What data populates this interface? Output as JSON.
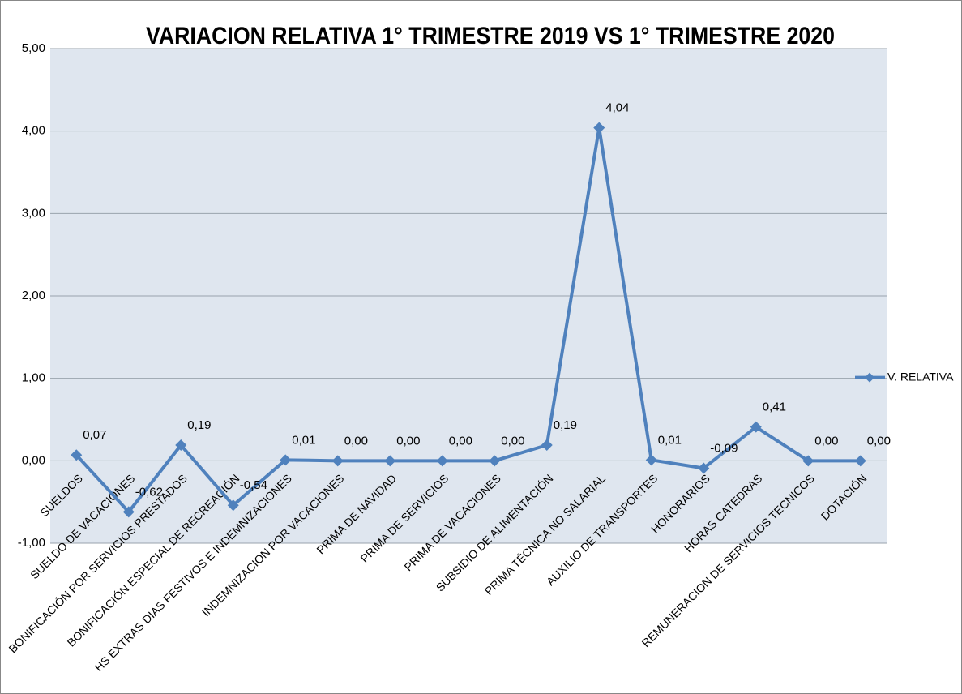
{
  "chart_data": {
    "type": "line",
    "title": "VARIACION  RELATIVA 1° TRIMESTRE 2019 VS 1° TRIMESTRE 2020",
    "categories": [
      "SUELDOS",
      "SUELDO DE VACACIONES",
      "BONIFICACIÓN POR SERVICIOS PRESTADOS",
      "BONIFICACIÓN ESPECIAL DE RECREACIÓN",
      "HS EXTRAS DIAS FESTIVOS E INDEMNIZACIONES",
      "INDEMNIZACION POR VACACIONES",
      "PRIMA DE NAVIDAD",
      "PRIMA DE SERVICIOS",
      "PRIMA DE VACACIONES",
      "SUBSIDIO DE ALIMENTACIÓN",
      "PRIMA TÉCNICA NO SALARIAL",
      "AUXILIO DE TRANSPORTES",
      "HONORARIOS",
      "HORAS CATEDRAS",
      "REMUNERACION DE SERVICIOS TECNICOS",
      "DOTACIÓN"
    ],
    "series": [
      {
        "name": "V. RELATIVA",
        "color": "#4f81bd",
        "values": [
          0.07,
          -0.62,
          0.19,
          -0.54,
          0.01,
          0,
          0,
          0,
          0,
          0.19,
          4.04,
          0.01,
          -0.09,
          0.41,
          0,
          0
        ],
        "value_labels": [
          "0,07",
          "-0,62",
          "0,19",
          "-0,54",
          "0,01",
          "0,00",
          "0,00",
          "0,00",
          "0,00",
          "0,19",
          "4,04",
          "0,01",
          "-0,09",
          "0,41",
          "0,00",
          "0,00"
        ]
      }
    ],
    "ylim": [
      -1,
      5
    ],
    "yticks": [
      {
        "value": -1,
        "label": "-1,00"
      },
      {
        "value": 0,
        "label": "0,00"
      },
      {
        "value": 1,
        "label": "1,00"
      },
      {
        "value": 2,
        "label": "2,00"
      },
      {
        "value": 3,
        "label": "3,00"
      },
      {
        "value": 4,
        "label": "4,00"
      },
      {
        "value": 5,
        "label": "5,00"
      }
    ],
    "grid": true,
    "legend": "right"
  }
}
